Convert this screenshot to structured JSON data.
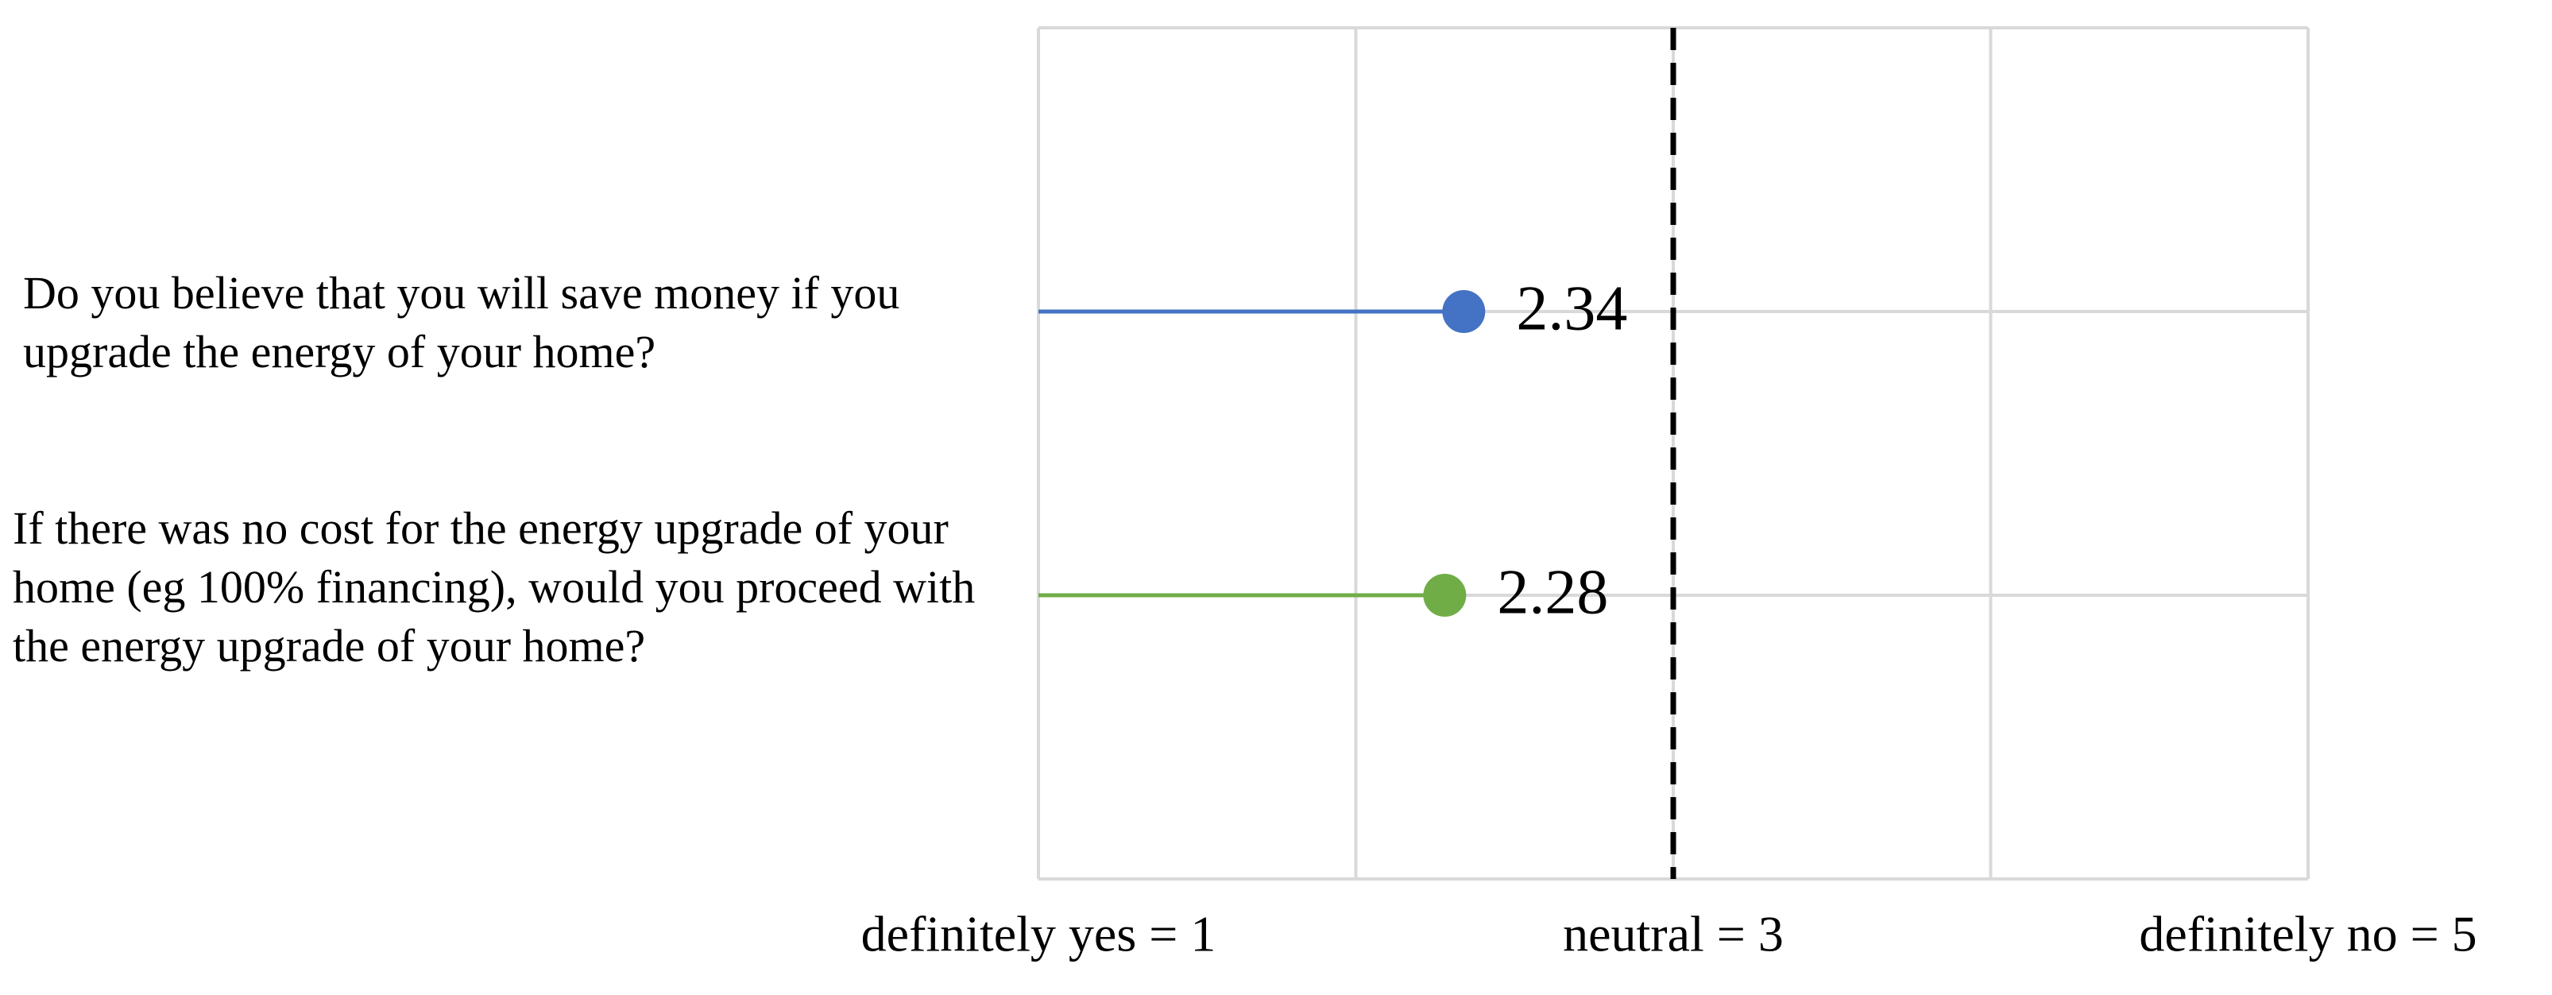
{
  "chart_data": {
    "type": "lollipop",
    "categories": [
      "Do you believe that you will save money if you upgrade the energy of your home?",
      "If there was no cost for the energy upgrade of your home (eg 100% financing), would you proceed with the energy upgrade of your home?"
    ],
    "values": [
      2.34,
      2.28
    ],
    "colors": [
      "#4472c4",
      "#70ad47"
    ],
    "xlim": [
      1,
      5
    ],
    "xticks": [
      {
        "value": 1,
        "label": "definitely yes = 1"
      },
      {
        "value": 3,
        "label": "neutral = 3"
      },
      {
        "value": 5,
        "label": "definitely no = 5"
      }
    ],
    "xgrid": [
      1,
      2,
      3,
      4,
      5
    ],
    "reference_line": 3,
    "grid": true
  }
}
